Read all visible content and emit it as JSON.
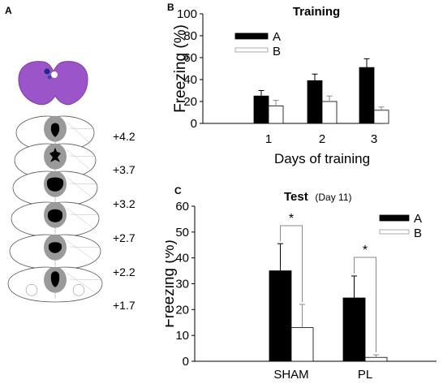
{
  "panel_labels": {
    "a": "A",
    "b": "B",
    "c": "C"
  },
  "panel_a": {
    "coordinates": [
      "+4.2",
      "+3.7",
      "+3.2",
      "+2.7",
      "+2.2",
      "+1.7"
    ],
    "stain_color": "#9b55c8",
    "lesion_color": "#000000",
    "spread_color": "#9a9a9a"
  },
  "colors": {
    "group_a": "#000000",
    "group_b": "#ffffff"
  },
  "chart_data": [
    {
      "type": "bar",
      "title": "Training",
      "xlabel": "Days of training",
      "ylabel": "Freezing (%)",
      "categories": [
        "1",
        "2",
        "3"
      ],
      "ylim": [
        0,
        100
      ],
      "yticks": [
        "0",
        "20",
        "40",
        "60",
        "80",
        "100"
      ],
      "legend_position": "top-left",
      "series": [
        {
          "name": "A",
          "values": [
            25,
            39,
            51
          ],
          "errors": [
            5,
            6,
            8
          ]
        },
        {
          "name": "B",
          "values": [
            16,
            20,
            12
          ],
          "errors": [
            5,
            5,
            3
          ]
        }
      ]
    },
    {
      "type": "bar",
      "title": "Test",
      "subtitle": "(Day 11)",
      "xlabel": "",
      "ylabel": "Freezing (%)",
      "categories": [
        "SHAM",
        "PL"
      ],
      "ylim": [
        0,
        60
      ],
      "yticks": [
        "0",
        "10",
        "20",
        "30",
        "40",
        "50",
        "60"
      ],
      "legend_position": "top-right",
      "series": [
        {
          "name": "A",
          "values": [
            35,
            24.5
          ],
          "errors": [
            10.5,
            8.5
          ]
        },
        {
          "name": "B",
          "values": [
            13,
            1.5
          ],
          "errors": [
            9,
            1
          ]
        }
      ],
      "significance": [
        "*",
        "*"
      ]
    }
  ]
}
